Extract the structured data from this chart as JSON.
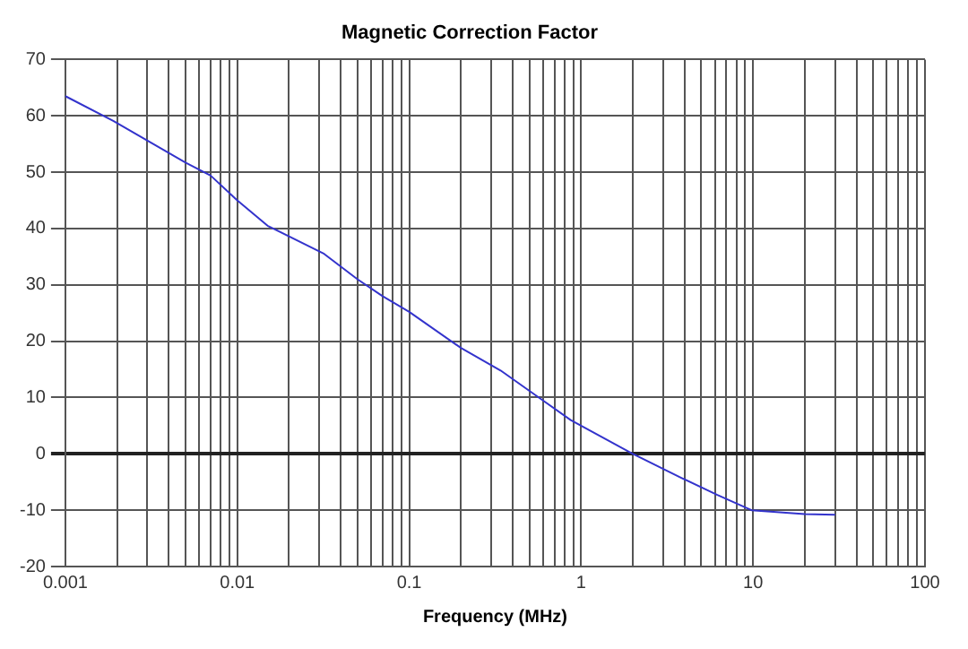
{
  "chart_data": {
    "type": "line",
    "title": "Magnetic Correction Factor",
    "xlabel": "Frequency (MHz)",
    "log": "x",
    "x": [
      0.001,
      0.0019,
      0.005,
      0.007,
      0.01,
      0.015,
      0.032,
      0.05,
      0.07,
      0.1,
      0.2,
      0.34,
      0.58,
      0.87,
      2,
      3.85,
      6.2,
      9.8,
      20,
      30
    ],
    "series": [
      {
        "color": "#3333cc",
        "values": [
          63.5,
          59.1,
          51.7,
          49.4,
          45,
          40.5,
          35.5,
          31,
          28,
          25.2,
          18.8,
          14.8,
          9.8,
          6,
          0,
          -4.3,
          -7.3,
          -10,
          -10.7,
          -10.8
        ]
      }
    ],
    "xlim": [
      0.001,
      100
    ],
    "xticks": [
      0.001,
      0.01,
      0.1,
      1,
      10,
      100
    ],
    "ylim": [
      -20,
      70
    ],
    "yticks": [
      -20,
      -10,
      0,
      10,
      20,
      30,
      40,
      50,
      60,
      70
    ],
    "grid": true,
    "legend": false,
    "marker": "none",
    "line_style": "solid"
  }
}
